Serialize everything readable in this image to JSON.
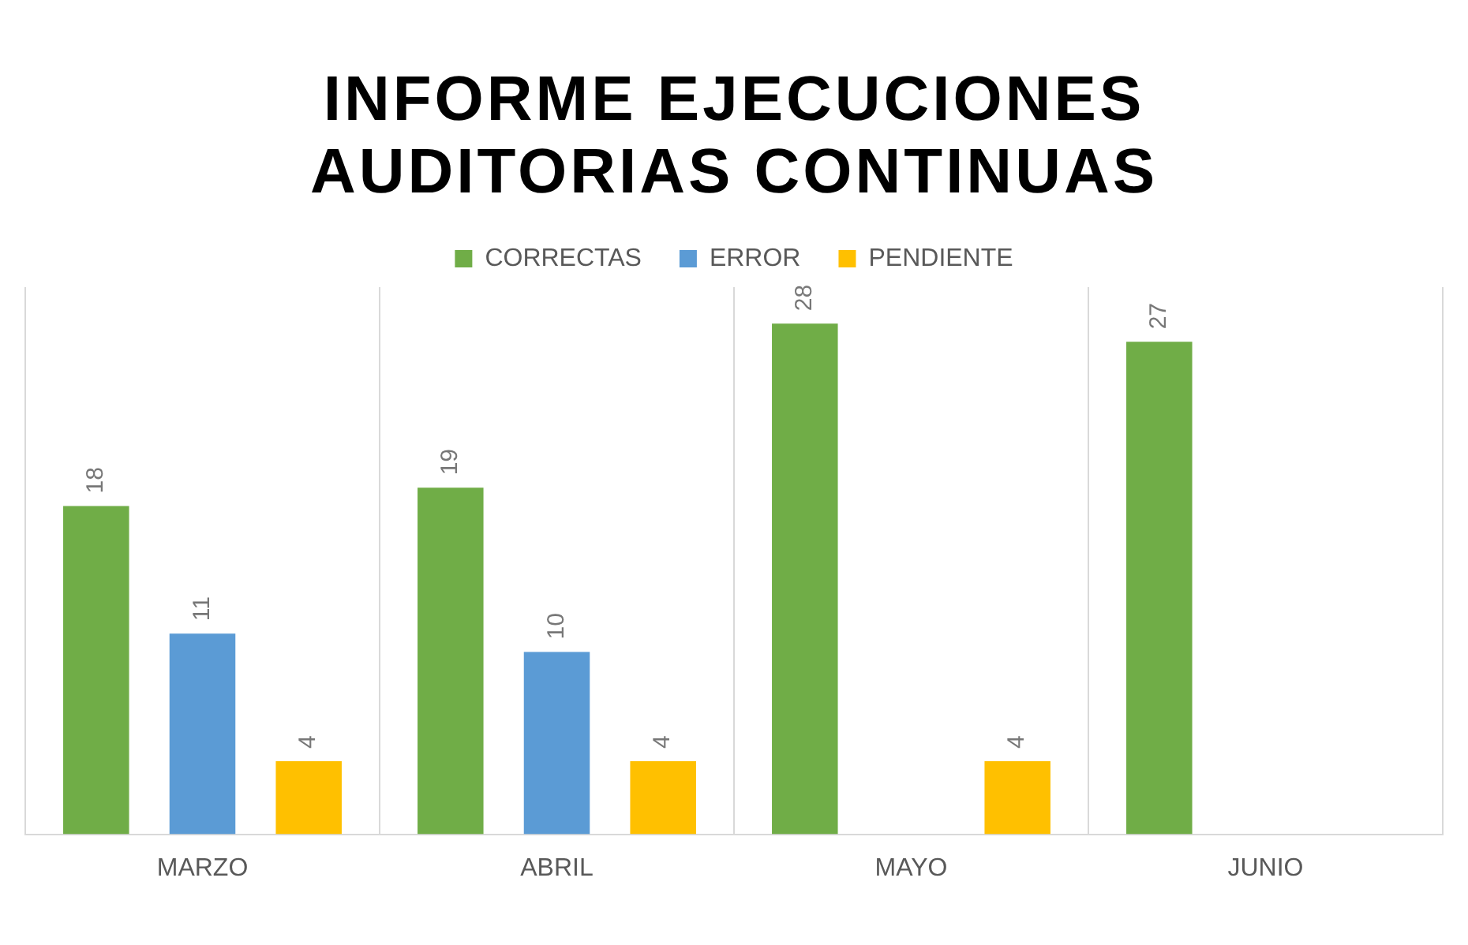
{
  "chart_data": {
    "type": "bar",
    "title": "INFORME EJECUCIONES AUDITORIAS CONTINUAS",
    "categories": [
      "MARZO",
      "ABRIL",
      "MAYO",
      "JUNIO"
    ],
    "series": [
      {
        "name": "CORRECTAS",
        "color": "#70ad47",
        "values": [
          18,
          19,
          28,
          27
        ]
      },
      {
        "name": "ERROR",
        "color": "#5b9bd5",
        "values": [
          11,
          10,
          null,
          null
        ]
      },
      {
        "name": "PENDIENTE",
        "color": "#ffc000",
        "values": [
          4,
          4,
          4,
          null
        ]
      }
    ],
    "data_labels": true,
    "grid": "x",
    "legend": "top"
  }
}
